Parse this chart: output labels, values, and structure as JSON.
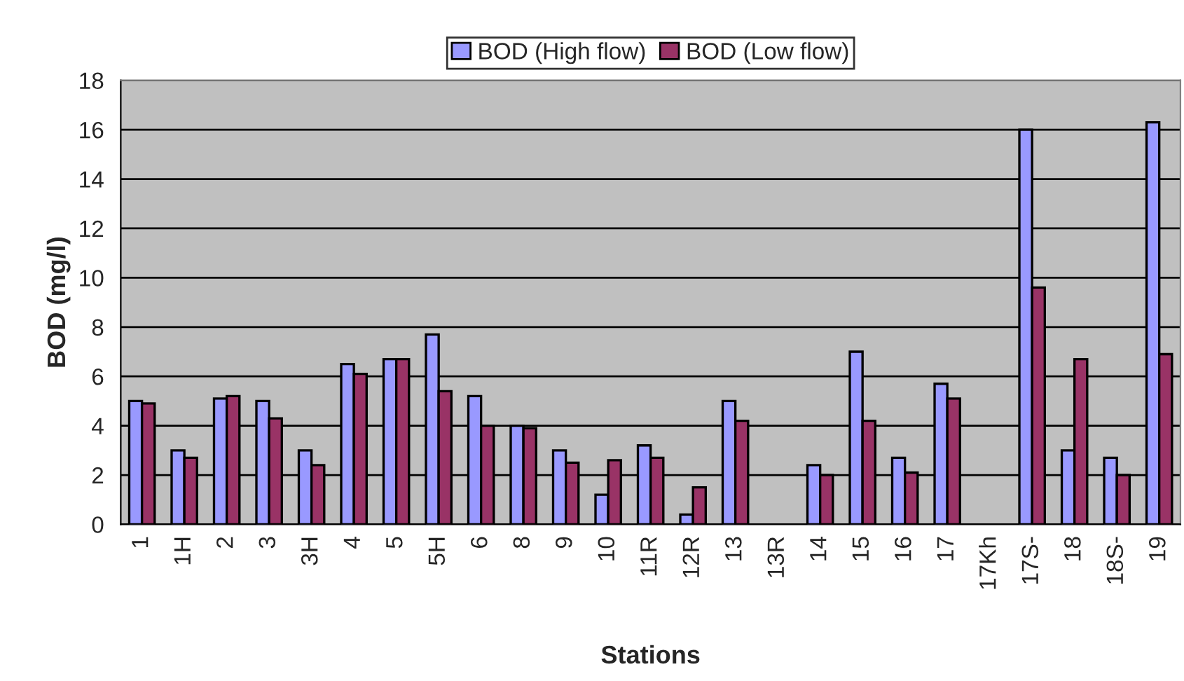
{
  "chart_data": {
    "type": "bar",
    "xlabel": "Stations",
    "ylabel": "BOD (mg/l)",
    "categories": [
      "1",
      "1H",
      "2",
      "3",
      "3H",
      "4",
      "5",
      "5H",
      "6",
      "8",
      "9",
      "10",
      "11R",
      "12R",
      "13",
      "13R",
      "14",
      "15",
      "16",
      "17",
      "17Kh",
      "17S-",
      "18",
      "18S-",
      "19"
    ],
    "series": [
      {
        "name": "BOD (High flow)",
        "color": "#9999ff",
        "values": [
          5.0,
          3.0,
          5.1,
          5.0,
          3.0,
          6.5,
          6.7,
          7.7,
          5.2,
          4.0,
          3.0,
          1.2,
          3.2,
          0.4,
          5.0,
          null,
          2.4,
          7.0,
          2.7,
          5.7,
          null,
          16.0,
          3.0,
          2.7,
          16.3
        ]
      },
      {
        "name": "BOD (Low flow)",
        "color": "#993366",
        "values": [
          4.9,
          2.7,
          5.2,
          4.3,
          2.4,
          6.1,
          6.7,
          5.4,
          4.0,
          3.9,
          2.5,
          2.6,
          2.7,
          1.5,
          4.2,
          null,
          2.0,
          4.2,
          2.1,
          5.1,
          null,
          9.6,
          6.7,
          2.0,
          6.9
        ]
      }
    ],
    "ylim": [
      0,
      18
    ],
    "yticks": [
      0,
      2,
      4,
      6,
      8,
      10,
      12,
      14,
      16,
      18
    ],
    "grid": "y",
    "legend": "top"
  }
}
